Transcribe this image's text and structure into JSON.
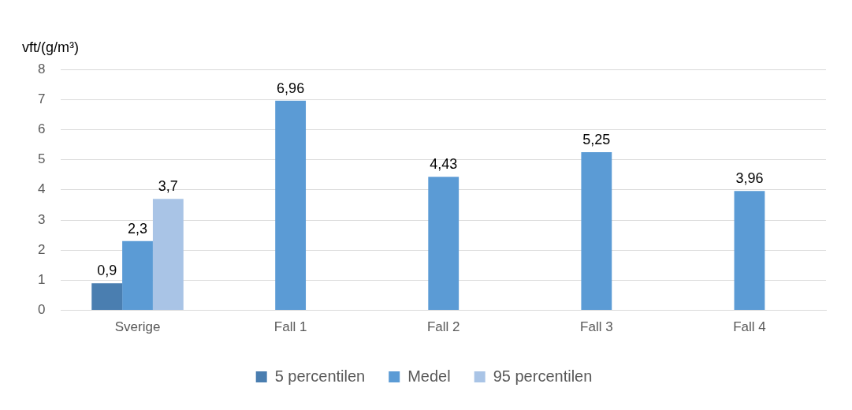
{
  "chart_data": {
    "type": "bar",
    "ylabel": "vft/(g/m³)",
    "categories": [
      "Sverige",
      "Fall 1",
      "Fall 2",
      "Fall 3",
      "Fall 4"
    ],
    "series": [
      {
        "name": "5 percentilen",
        "color": "#4a7eb0",
        "values": [
          0.9,
          null,
          null,
          null,
          null
        ],
        "value_labels": [
          "0,9",
          null,
          null,
          null,
          null
        ]
      },
      {
        "name": "Medel",
        "color": "#5b9bd5",
        "values": [
          2.3,
          6.96,
          4.43,
          5.25,
          3.96
        ],
        "value_labels": [
          "2,3",
          "6,96",
          "4,43",
          "5,25",
          "3,96"
        ]
      },
      {
        "name": "95 percentilen",
        "color": "#a9c4e6",
        "values": [
          3.7,
          null,
          null,
          null,
          null
        ],
        "value_labels": [
          "3,7",
          null,
          null,
          null,
          null
        ]
      }
    ],
    "ylim": [
      0,
      8
    ],
    "yticks": [
      0,
      1,
      2,
      3,
      4,
      5,
      6,
      7,
      8
    ],
    "grid": "y",
    "legend": "bottom"
  }
}
